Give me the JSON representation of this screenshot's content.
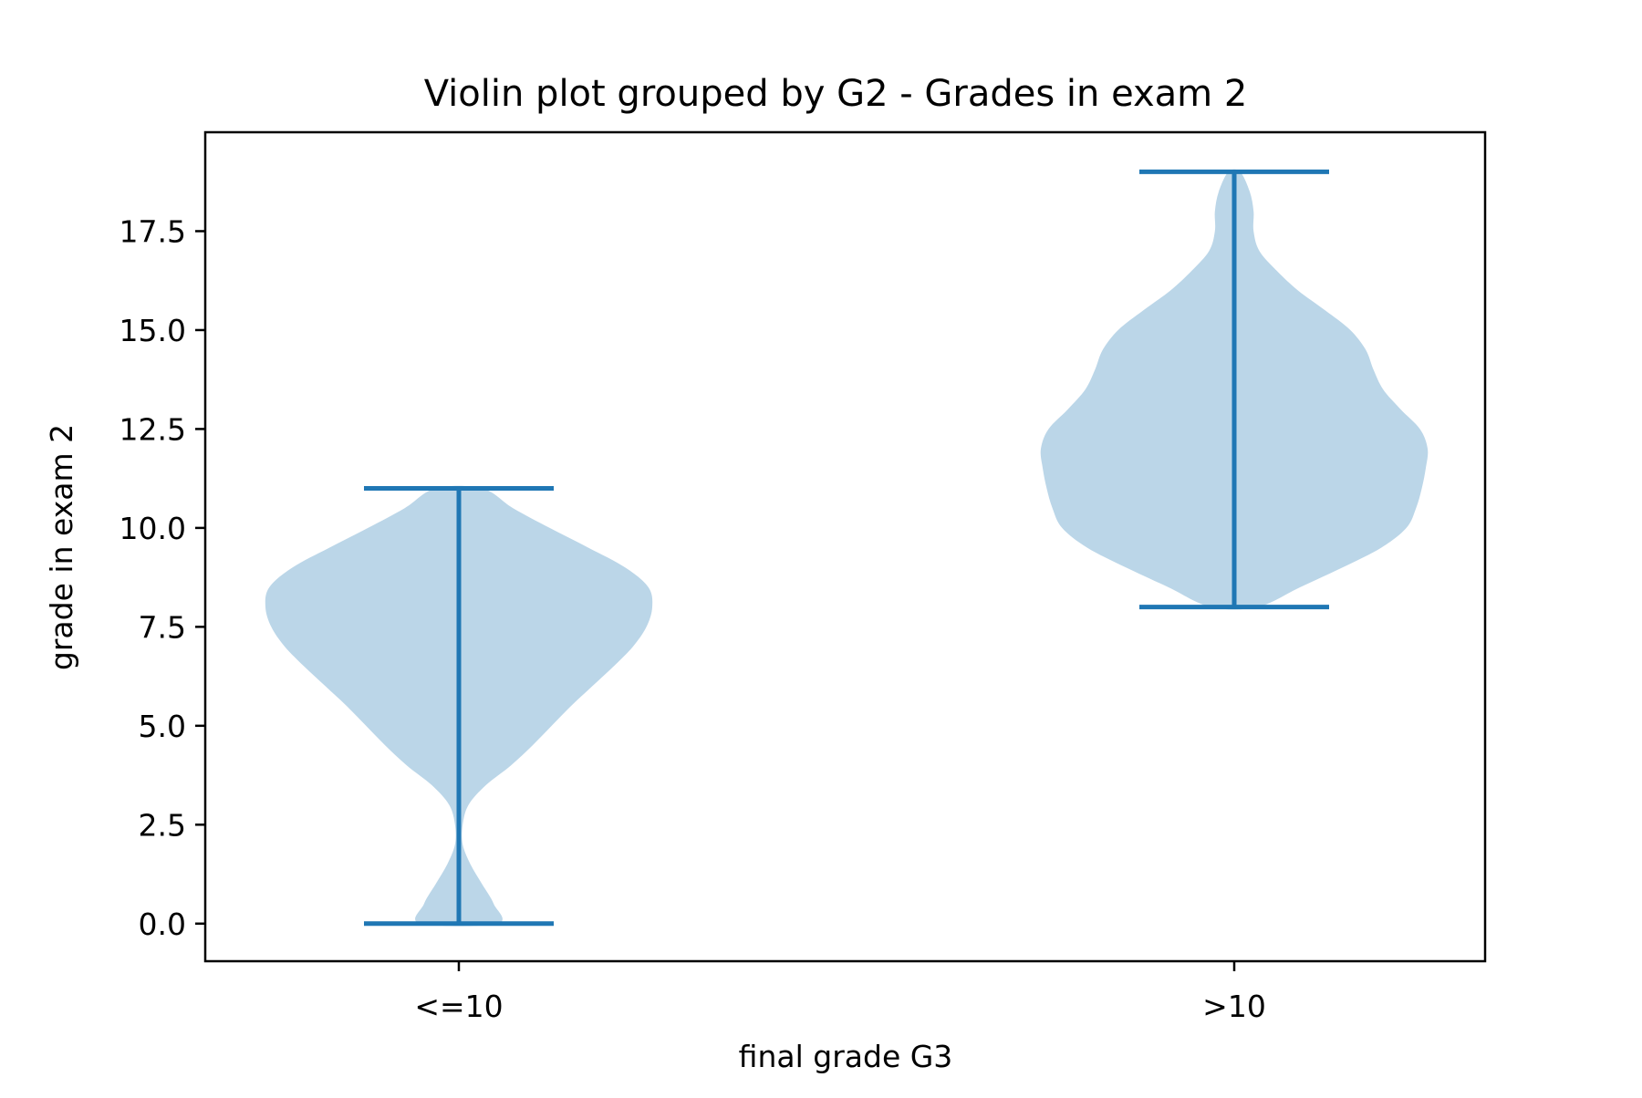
{
  "chart_data": {
    "type": "violin",
    "title": "Violin plot grouped by G2 - Grades in exam 2",
    "xlabel": "final grade G3",
    "ylabel": "grade in exam 2",
    "categories": [
      "<=10",
      ">10"
    ],
    "ylim": [
      -0.95,
      20.0
    ],
    "yticks": [
      "0.0",
      "2.5",
      "5.0",
      "7.5",
      "10.0",
      "12.5",
      "15.0",
      "17.5"
    ],
    "grid": false,
    "colors": {
      "violin_fill": "#bbd6e8",
      "whisker": "#1f77b4",
      "axis": "#000000"
    },
    "violins": [
      {
        "category": "<=10",
        "min": 0,
        "max": 11,
        "density_profile": [
          [
            0.0,
            0.2
          ],
          [
            0.5,
            0.18
          ],
          [
            1.0,
            0.12
          ],
          [
            1.5,
            0.06
          ],
          [
            2.0,
            0.02
          ],
          [
            2.5,
            0.02
          ],
          [
            3.0,
            0.05
          ],
          [
            3.5,
            0.14
          ],
          [
            4.0,
            0.27
          ],
          [
            4.5,
            0.38
          ],
          [
            5.0,
            0.48
          ],
          [
            5.5,
            0.58
          ],
          [
            6.0,
            0.69
          ],
          [
            6.5,
            0.8
          ],
          [
            7.0,
            0.9
          ],
          [
            7.5,
            0.97
          ],
          [
            8.0,
            1.0
          ],
          [
            8.5,
            0.98
          ],
          [
            9.0,
            0.86
          ],
          [
            9.5,
            0.67
          ],
          [
            10.0,
            0.47
          ],
          [
            10.5,
            0.28
          ],
          [
            11.0,
            0.12
          ]
        ]
      },
      {
        "category": ">10",
        "min": 8,
        "max": 19,
        "density_profile": [
          [
            8.0,
            0.12
          ],
          [
            8.5,
            0.34
          ],
          [
            9.0,
            0.56
          ],
          [
            9.5,
            0.76
          ],
          [
            10.0,
            0.89
          ],
          [
            10.5,
            0.94
          ],
          [
            11.0,
            0.97
          ],
          [
            11.5,
            0.99
          ],
          [
            12.0,
            1.0
          ],
          [
            12.5,
            0.96
          ],
          [
            13.0,
            0.86
          ],
          [
            13.5,
            0.77
          ],
          [
            14.0,
            0.72
          ],
          [
            14.5,
            0.68
          ],
          [
            15.0,
            0.6
          ],
          [
            15.5,
            0.47
          ],
          [
            16.0,
            0.33
          ],
          [
            16.5,
            0.22
          ],
          [
            17.0,
            0.13
          ],
          [
            17.5,
            0.1
          ],
          [
            18.0,
            0.1
          ],
          [
            18.5,
            0.08
          ],
          [
            19.0,
            0.03
          ]
        ]
      }
    ]
  }
}
